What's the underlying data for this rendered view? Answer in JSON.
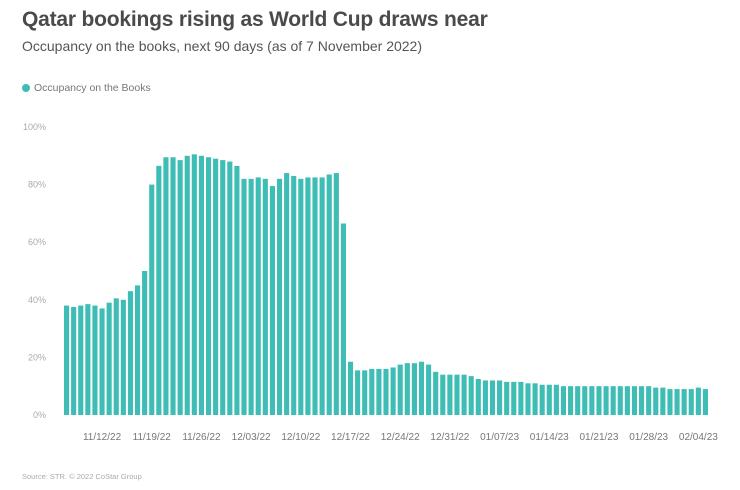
{
  "title": "Qatar bookings rising as World Cup draws near",
  "subtitle": "Occupancy on the books, next 90 days (as of 7 November 2022)",
  "source": "Source: STR. © 2022 CoStar Group",
  "colors": {
    "bar": "#3dbdb3",
    "text": "#4a4a4a",
    "axis": "#aaaaaa"
  },
  "chart_data": {
    "type": "bar",
    "title": "Qatar bookings rising as World Cup draws near",
    "subtitle": "Occupancy on the books, next 90 days (as of 7 November 2022)",
    "legend": {
      "position": "top-left",
      "entries": [
        "Occupancy on the Books"
      ]
    },
    "series": [
      {
        "name": "Occupancy on the Books",
        "color": "#3dbdb3",
        "values": [
          38,
          37.5,
          38,
          38.5,
          38,
          37,
          39,
          40.5,
          40,
          43,
          45,
          50,
          80,
          86.5,
          89.5,
          89.5,
          88.5,
          90,
          90.5,
          90,
          89.5,
          89,
          88.5,
          88,
          86.5,
          82,
          82,
          82.5,
          82,
          79.5,
          82,
          84,
          83,
          82,
          82.5,
          82.5,
          82.5,
          83.5,
          84,
          66.5,
          18.5,
          15.5,
          15.5,
          16,
          16,
          16,
          16.5,
          17.5,
          18,
          18,
          18.5,
          17.5,
          15,
          14,
          14,
          14,
          14,
          13.5,
          12.5,
          12,
          12,
          12,
          11.5,
          11.5,
          11.5,
          11,
          11,
          10.5,
          10.5,
          10.5,
          10,
          10,
          10,
          10,
          10,
          10,
          10,
          10,
          10,
          10,
          10,
          10,
          10,
          9.5,
          9.5,
          9,
          9,
          9,
          9,
          9.5,
          9
        ]
      }
    ],
    "x_tick_labels": [
      "11/12/22",
      "11/19/22",
      "11/26/22",
      "12/03/22",
      "12/10/22",
      "12/17/22",
      "12/24/22",
      "12/31/22",
      "01/07/23",
      "01/14/23",
      "01/21/23",
      "01/28/23",
      "02/04/23"
    ],
    "x_tick_indices": [
      5,
      12,
      19,
      26,
      33,
      40,
      47,
      54,
      61,
      68,
      75,
      82,
      89
    ],
    "y_tick_labels": [
      "0%",
      "20%",
      "40%",
      "60%",
      "80%",
      "100%"
    ],
    "y_ticks": [
      0,
      20,
      40,
      60,
      80,
      100
    ],
    "ylim": [
      0,
      100
    ],
    "xlabel": "",
    "ylabel": "",
    "grid": false
  }
}
